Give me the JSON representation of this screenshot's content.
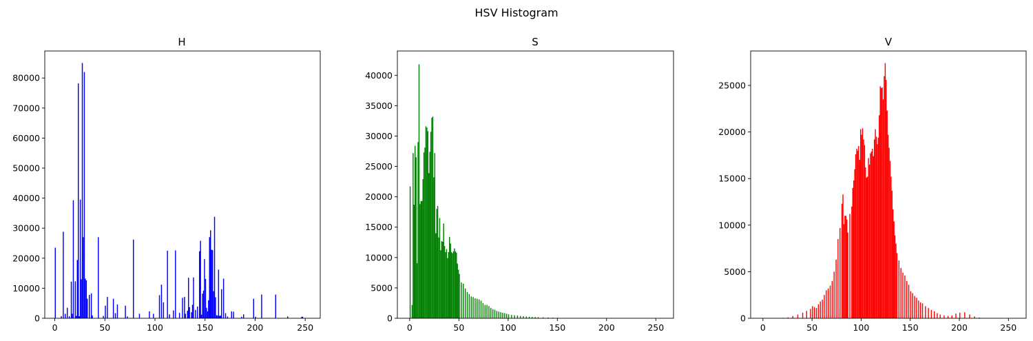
{
  "figure": {
    "title": "HSV Histogram"
  },
  "chart_data": [
    {
      "type": "bar",
      "title": "H",
      "color": "#0000ff",
      "xlim": [
        -10,
        265
      ],
      "ylim": [
        0,
        89000
      ],
      "xticks": [
        0,
        50,
        100,
        150,
        200,
        250
      ],
      "yticks": [
        0,
        10000,
        20000,
        30000,
        40000,
        50000,
        60000,
        70000,
        80000
      ],
      "bin_width": 1,
      "grid": false,
      "x": [
        0,
        6,
        8,
        10,
        12,
        14,
        16,
        17,
        18,
        20,
        21,
        22,
        23,
        24,
        25,
        26,
        27,
        28,
        29,
        30,
        31,
        32,
        34,
        36,
        37,
        43,
        48,
        50,
        52,
        58,
        60,
        62,
        70,
        72,
        78,
        84,
        94,
        98,
        104,
        106,
        108,
        112,
        114,
        118,
        120,
        124,
        127,
        129,
        130,
        132,
        133,
        134,
        136,
        137,
        138,
        140,
        142,
        144,
        145,
        146,
        147,
        148,
        149,
        150,
        151,
        152,
        153,
        154,
        155,
        156,
        157,
        158,
        159,
        160,
        161,
        162,
        163,
        164,
        165,
        166,
        168,
        170,
        172,
        176,
        178,
        186,
        188,
        198,
        200,
        206,
        220,
        232,
        246,
        247
      ],
      "values": [
        23500,
        700,
        28800,
        1500,
        3500,
        700,
        12200,
        1500,
        39300,
        12300,
        800,
        19400,
        78200,
        700,
        39500,
        13000,
        85000,
        27000,
        82000,
        13200,
        12600,
        6500,
        7800,
        8300,
        900,
        27000,
        800,
        4200,
        7100,
        6500,
        1700,
        4600,
        4200,
        600,
        26200,
        1500,
        2300,
        1500,
        7700,
        11200,
        5300,
        22500,
        1300,
        2600,
        22600,
        1800,
        6800,
        7100,
        1500,
        2500,
        13500,
        3700,
        2000,
        4500,
        13600,
        2800,
        3900,
        22300,
        25800,
        1200,
        8200,
        9200,
        19700,
        13100,
        3500,
        2300,
        6000,
        27000,
        29300,
        22800,
        22700,
        9000,
        33800,
        7000,
        1000,
        900,
        16200,
        800,
        900,
        9700,
        13200,
        1700,
        600,
        2300,
        2200,
        500,
        1300,
        6500,
        500,
        7900,
        7900,
        600,
        500,
        500
      ]
    },
    {
      "type": "bar",
      "title": "S",
      "color": "#008000",
      "xlim": [
        -12.5,
        268
      ],
      "ylim": [
        0,
        44000
      ],
      "xticks": [
        0,
        50,
        100,
        150,
        200,
        250
      ],
      "yticks": [
        0,
        5000,
        10000,
        15000,
        20000,
        25000,
        30000,
        35000,
        40000
      ],
      "bin_width": 1,
      "grid": false,
      "x": [
        0,
        1,
        2,
        3,
        4,
        5,
        6,
        7,
        8,
        9,
        10,
        11,
        12,
        13,
        14,
        15,
        16,
        17,
        18,
        19,
        20,
        21,
        22,
        23,
        24,
        25,
        26,
        27,
        28,
        29,
        30,
        31,
        32,
        33,
        34,
        35,
        36,
        37,
        38,
        39,
        40,
        41,
        42,
        43,
        44,
        45,
        46,
        47,
        48,
        49,
        50,
        52,
        54,
        56,
        58,
        60,
        62,
        64,
        66,
        68,
        70,
        72,
        74,
        76,
        78,
        80,
        82,
        84,
        86,
        88,
        90,
        92,
        94,
        96,
        98,
        100,
        103,
        106,
        109,
        112,
        115,
        118,
        121,
        124,
        127,
        130,
        135,
        140,
        145,
        150,
        155,
        160,
        165,
        170,
        175,
        180,
        190,
        200,
        210,
        220,
        230,
        240,
        250
      ],
      "values": [
        21700,
        0,
        2200,
        27200,
        18700,
        28400,
        26500,
        9100,
        29000,
        41800,
        18800,
        19300,
        19300,
        22900,
        27300,
        28100,
        31600,
        31400,
        30800,
        23900,
        27400,
        30700,
        33000,
        33200,
        23200,
        27200,
        14000,
        18000,
        18500,
        13300,
        16500,
        11200,
        12700,
        12600,
        15600,
        11900,
        10900,
        11400,
        9900,
        10900,
        13400,
        12300,
        10900,
        10700,
        11000,
        11500,
        11000,
        10800,
        9000,
        8000,
        7300,
        5900,
        5700,
        4900,
        4300,
        4000,
        3600,
        3500,
        3300,
        3200,
        3100,
        2900,
        2500,
        2200,
        2200,
        2000,
        1700,
        1500,
        1400,
        1200,
        1100,
        1000,
        900,
        850,
        750,
        650,
        550,
        500,
        450,
        380,
        330,
        290,
        260,
        230,
        200,
        180,
        150,
        120,
        100,
        80,
        60,
        50,
        40,
        30,
        20,
        10,
        5,
        0,
        0,
        0,
        0,
        0,
        0
      ]
    },
    {
      "type": "bar",
      "title": "V",
      "color": "#ff0000",
      "xlim": [
        -12.5,
        268
      ],
      "ylim": [
        0,
        28700
      ],
      "xticks": [
        0,
        50,
        100,
        150,
        200,
        250
      ],
      "yticks": [
        0,
        5000,
        10000,
        15000,
        20000,
        25000
      ],
      "bin_width": 1,
      "grid": false,
      "x": [
        0,
        10,
        20,
        25,
        30,
        35,
        40,
        44,
        48,
        50,
        52,
        54,
        56,
        58,
        60,
        62,
        64,
        66,
        68,
        70,
        72,
        74,
        76,
        78,
        80,
        81,
        82,
        83,
        84,
        85,
        86,
        88,
        90,
        91,
        92,
        93,
        94,
        95,
        96,
        97,
        98,
        99,
        100,
        101,
        102,
        103,
        104,
        105,
        106,
        107,
        108,
        109,
        110,
        111,
        112,
        113,
        114,
        115,
        116,
        117,
        118,
        119,
        120,
        121,
        122,
        123,
        124,
        125,
        126,
        127,
        128,
        129,
        130,
        131,
        132,
        133,
        134,
        135,
        136,
        138,
        140,
        142,
        144,
        146,
        148,
        150,
        152,
        154,
        156,
        158,
        160,
        162,
        165,
        168,
        171,
        174,
        177,
        180,
        184,
        188,
        192,
        196,
        200,
        205,
        210,
        215,
        220,
        225,
        230,
        240,
        250
      ],
      "values": [
        0,
        0,
        50,
        100,
        250,
        400,
        600,
        800,
        1000,
        1300,
        1200,
        1100,
        1500,
        1800,
        2000,
        2500,
        3000,
        3200,
        3500,
        4000,
        5000,
        6300,
        8500,
        9700,
        12300,
        13300,
        10100,
        11000,
        11000,
        10600,
        9200,
        11200,
        12000,
        14000,
        14800,
        16000,
        17600,
        18200,
        18000,
        18500,
        17000,
        20300,
        19700,
        20400,
        19200,
        18600,
        16200,
        15100,
        15200,
        17200,
        16500,
        17700,
        17900,
        18200,
        17400,
        19200,
        20300,
        19500,
        18700,
        19400,
        21800,
        24900,
        24700,
        24800,
        23500,
        26000,
        27400,
        25600,
        22300,
        19700,
        18300,
        16900,
        15200,
        13700,
        11700,
        10400,
        8900,
        8000,
        7000,
        6200,
        5400,
        4900,
        4600,
        4000,
        3600,
        2900,
        2700,
        2400,
        2200,
        1900,
        1700,
        1600,
        1300,
        1100,
        900,
        750,
        550,
        400,
        300,
        250,
        300,
        500,
        600,
        650,
        400,
        200,
        80,
        30,
        10,
        0,
        0
      ]
    }
  ]
}
